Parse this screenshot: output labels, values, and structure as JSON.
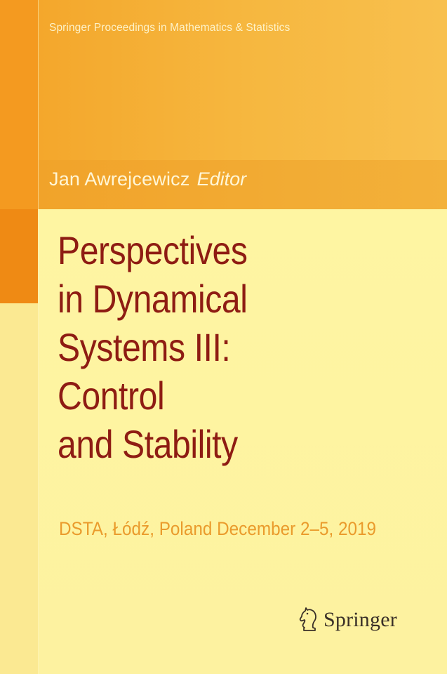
{
  "series": "Springer Proceedings in Mathematics & Statistics",
  "editor": {
    "name": "Jan Awrejcewicz",
    "role": "Editor"
  },
  "title_lines": [
    "Perspectives",
    "in Dynamical",
    "Systems III:",
    "Control",
    "and Stability"
  ],
  "subtitle": "DSTA, Łódź, Poland December 2–5, 2019",
  "publisher": {
    "name": "Springer",
    "logo_icon": "springer-knight-icon"
  },
  "colors": {
    "band": "#f6b73f",
    "accent": "#ef8a14",
    "background": "#fdf4a0",
    "title": "#8e1c13",
    "subtitle": "#ea9b2c"
  }
}
